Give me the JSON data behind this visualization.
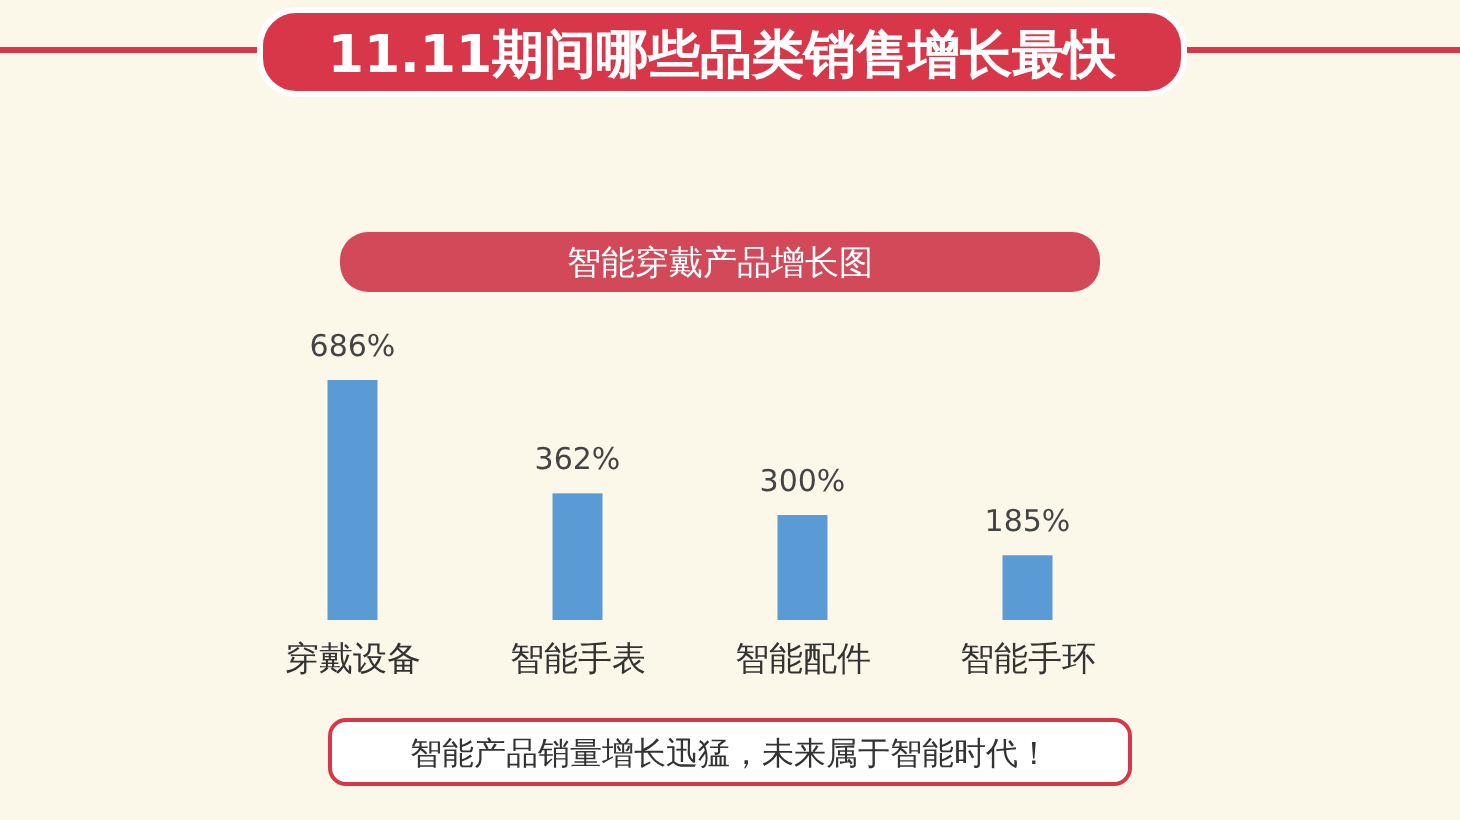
{
  "chart_data": {
    "type": "bar",
    "title": "11.11期间哪些品类销售增长最快",
    "subtitle": "智能穿戴产品增长图",
    "categories": [
      "穿戴设备",
      "智能手表",
      "智能配件",
      "智能手环"
    ],
    "values": [
      686,
      362,
      300,
      185
    ],
    "value_labels": [
      "686%",
      "362%",
      "300%",
      "185%"
    ],
    "color": "#5b9bd5",
    "annotations": [
      "智能产品销量增长迅猛，未来属于智能时代！"
    ]
  }
}
